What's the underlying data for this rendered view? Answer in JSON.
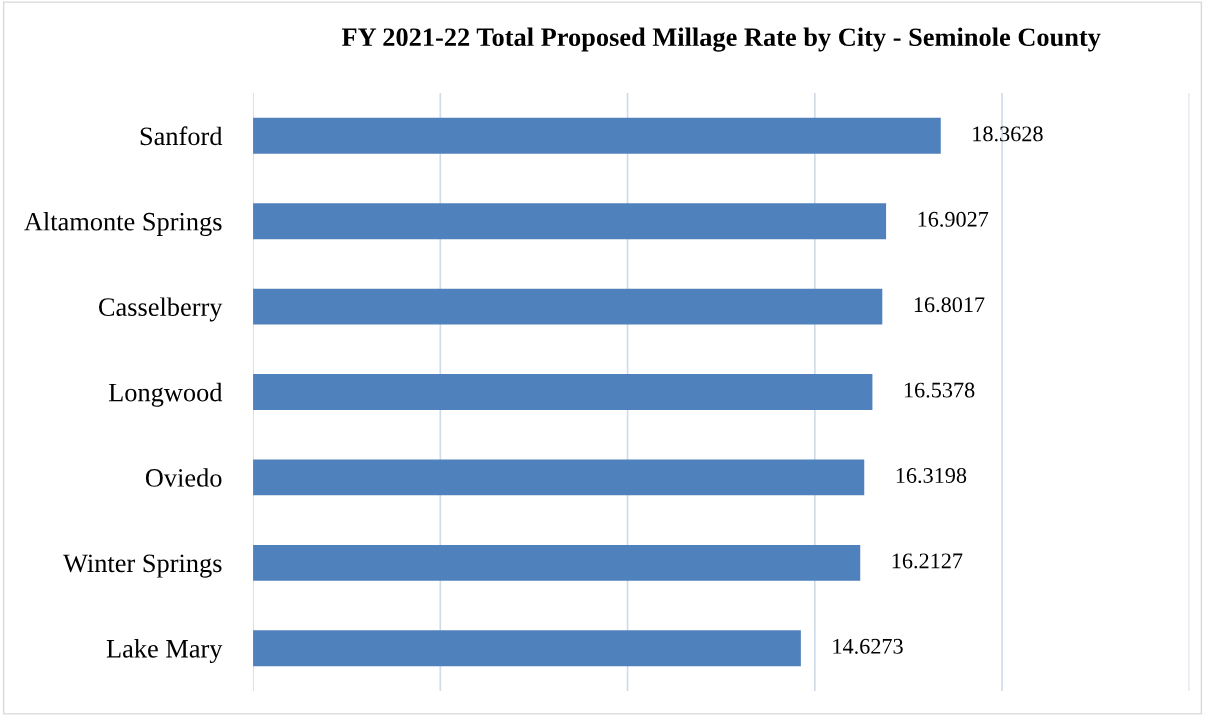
{
  "chart_data": {
    "type": "bar",
    "orientation": "horizontal",
    "title": "FY 2021-22 Total Proposed Millage Rate by City - Seminole County",
    "categories": [
      "Sanford",
      "Altamonte Springs",
      "Casselberry",
      "Longwood",
      "Oviedo",
      "Winter Springs",
      "Lake Mary"
    ],
    "values": [
      18.3628,
      16.9027,
      16.8017,
      16.5378,
      16.3198,
      16.2127,
      14.6273
    ],
    "color": "#4f81bd",
    "xlim": [
      0,
      25
    ],
    "xticks": [
      {
        "value": 0,
        "label": null
      },
      {
        "value": 5,
        "label": null
      },
      {
        "value": 10,
        "label": null
      },
      {
        "value": 15,
        "label": null
      },
      {
        "value": 20,
        "label": null
      },
      {
        "value": 25,
        "label": null
      }
    ],
    "grid": "x",
    "data_labels": true,
    "tick_labels": "y"
  }
}
